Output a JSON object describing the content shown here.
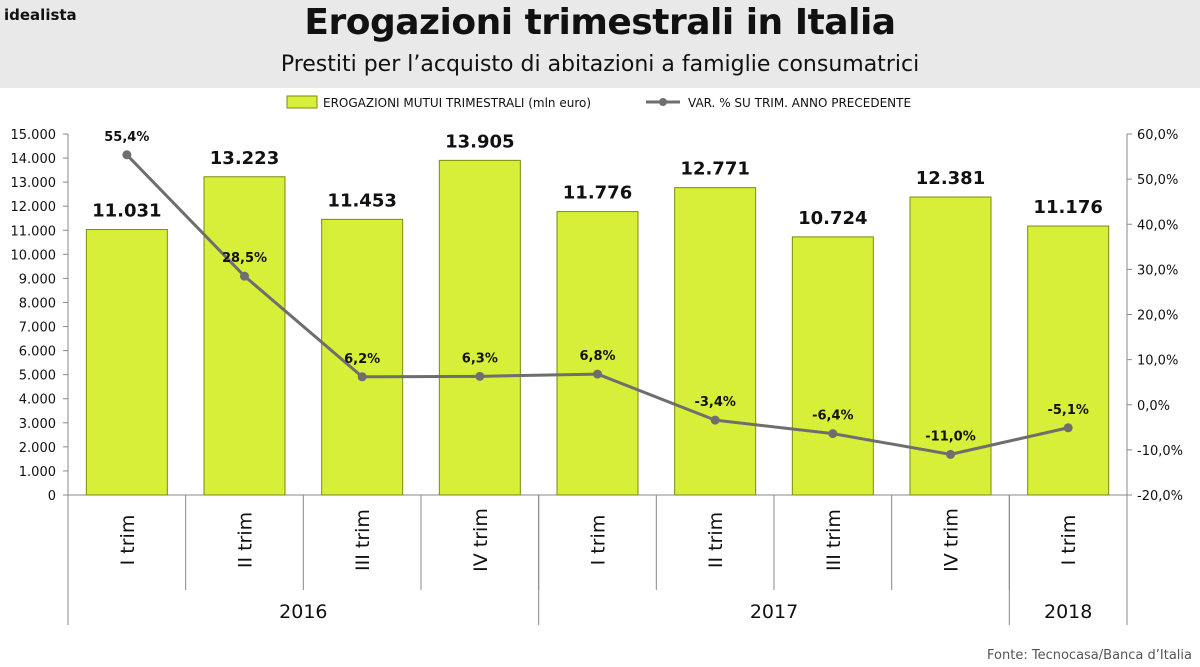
{
  "header": {
    "brand": "idealista",
    "title": "Erogazioni trimestrali in Italia",
    "subtitle": "Prestiti per l’acquisto di abitazioni a famiglie consumatrici"
  },
  "source": "Fonte: Tecnocasa/Banca d’Italia",
  "colors": {
    "bar": "#d8ef3a",
    "bar_stroke": "#7a8a10",
    "line": "#6e6e6e",
    "background": "#ffffff"
  },
  "chart_data": {
    "type": "bar",
    "categories": [
      "I trim",
      "II trim",
      "III trim",
      "IV trim",
      "I trim",
      "II trim",
      "III trim",
      "IV trim",
      "I trim"
    ],
    "years": [
      {
        "label": "2016",
        "count": 4
      },
      {
        "label": "2017",
        "count": 4
      },
      {
        "label": "2018",
        "count": 1
      }
    ],
    "series": [
      {
        "name": "EROGAZIONI MUTUI TRIMESTRALI (mln euro)",
        "type": "bar",
        "axis": "left",
        "values": [
          11031,
          13223,
          11453,
          13905,
          11776,
          12771,
          10724,
          12381,
          11176
        ],
        "labels": [
          "11.031",
          "13.223",
          "11.453",
          "13.905",
          "11.776",
          "12.771",
          "10.724",
          "12.381",
          "11.176"
        ]
      },
      {
        "name": "VAR. % SU TRIM. ANNO PRECEDENTE",
        "type": "line",
        "axis": "right",
        "values": [
          55.4,
          28.5,
          6.2,
          6.3,
          6.8,
          -3.4,
          -6.4,
          -11.0,
          -5.1
        ],
        "labels": [
          "55,4%",
          "28,5%",
          "6,2%",
          "6,3%",
          "6,8%",
          "-3,4%",
          "-6,4%",
          "-11,0%",
          "-5,1%"
        ]
      }
    ],
    "y_left": {
      "ylim": [
        0,
        15000
      ],
      "ticks": [
        0,
        1000,
        2000,
        3000,
        4000,
        5000,
        6000,
        7000,
        8000,
        9000,
        10000,
        11000,
        12000,
        13000,
        14000,
        15000
      ],
      "tick_labels": [
        "0",
        "1.000",
        "2.000",
        "3.000",
        "4.000",
        "5.000",
        "6.000",
        "7.000",
        "8.000",
        "9.000",
        "10.000",
        "11.000",
        "12.000",
        "13.000",
        "14.000",
        "15.000"
      ]
    },
    "y_right": {
      "ylim": [
        -20,
        60
      ],
      "ticks": [
        -20,
        -10,
        0,
        10,
        20,
        30,
        40,
        50,
        60
      ],
      "tick_labels": [
        "-20,0%",
        "-10,0%",
        "0,0%",
        "10,0%",
        "20,0%",
        "30,0%",
        "40,0%",
        "50,0%",
        "60,0%"
      ]
    },
    "legend": "top-center",
    "grid": false
  }
}
